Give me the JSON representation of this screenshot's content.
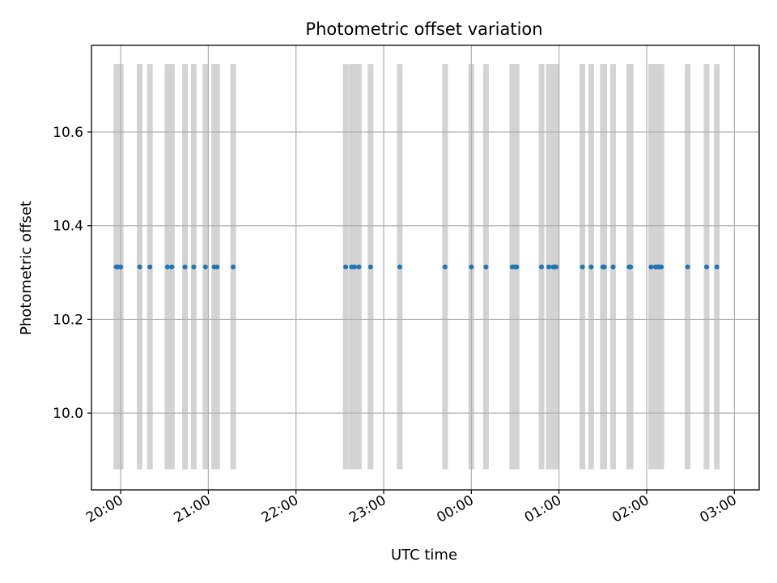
{
  "chart_data": {
    "type": "scatter",
    "title": "Photometric offset variation",
    "xlabel": "UTC time",
    "ylabel": "Photometric offset",
    "x_unit": "time of day (UTC), continuing past midnight",
    "xlim": [
      "19:40",
      "27:17"
    ],
    "ylim": [
      9.836,
      10.785
    ],
    "grid": true,
    "x_ticks": [
      {
        "label": "20:00",
        "value": "20:00"
      },
      {
        "label": "21:00",
        "value": "21:00"
      },
      {
        "label": "22:00",
        "value": "22:00"
      },
      {
        "label": "23:00",
        "value": "23:00"
      },
      {
        "label": "00:00",
        "value": "24:00"
      },
      {
        "label": "01:00",
        "value": "25:00"
      },
      {
        "label": "02:00",
        "value": "26:00"
      },
      {
        "label": "03:00",
        "value": "27:00"
      }
    ],
    "y_ticks": [
      {
        "label": "10.0",
        "value": 10.0
      },
      {
        "label": "10.2",
        "value": 10.2
      },
      {
        "label": "10.4",
        "value": 10.4
      },
      {
        "label": "10.6",
        "value": 10.6
      }
    ],
    "band_range": [
      9.88,
      10.745
    ],
    "band_color": "#d3d3d3",
    "point_color": "#1f77b4",
    "series": [
      {
        "y": 10.312,
        "times": [
          "19:57",
          "19:58",
          "20:00",
          "20:13",
          "20:20",
          "20:32",
          "20:35",
          "20:44",
          "20:50",
          "20:58",
          "21:04",
          "21:06",
          "21:17",
          "22:34",
          "22:38",
          "22:40",
          "22:43",
          "22:51",
          "23:11",
          "23:42",
          "24:00",
          "24:10",
          "24:28",
          "24:30",
          "24:31",
          "24:48",
          "24:53",
          "24:56",
          "24:57",
          "24:58",
          "25:16",
          "25:22",
          "25:30",
          "25:31",
          "25:37",
          "25:48",
          "25:49",
          "26:03",
          "26:06",
          "26:07",
          "26:08",
          "26:09",
          "26:10",
          "26:28",
          "26:41",
          "26:48"
        ]
      }
    ]
  }
}
